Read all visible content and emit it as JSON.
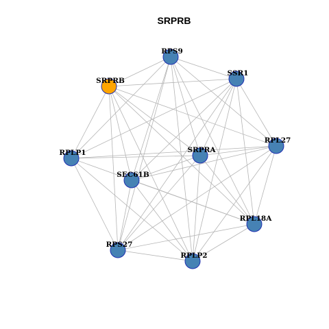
{
  "title": "SRPRB",
  "colors": {
    "node": "#4682b4",
    "highlight": "#ffa500",
    "edge": "#b4b4b4",
    "node_border": "#1f2fb0"
  },
  "nodes": [
    {
      "id": "RPS9",
      "label": "RPS9",
      "highlight": false
    },
    {
      "id": "SRPRB",
      "label": "SRPRB",
      "highlight": true
    },
    {
      "id": "SSR1",
      "label": "SSR1",
      "highlight": false
    },
    {
      "id": "RPL27",
      "label": "RPL27",
      "highlight": false
    },
    {
      "id": "RPLP1",
      "label": "RPLP1",
      "highlight": false
    },
    {
      "id": "SRPRA",
      "label": "SRPRA",
      "highlight": false
    },
    {
      "id": "SEC61B",
      "label": "SEC61B",
      "highlight": false
    },
    {
      "id": "RPL18A",
      "label": "RPL18A",
      "highlight": false
    },
    {
      "id": "RPS27",
      "label": "RPS27",
      "highlight": false
    },
    {
      "id": "RPLP2",
      "label": "RPLP2",
      "highlight": false
    }
  ],
  "edges": [
    [
      "RPS9",
      "SRPRB"
    ],
    [
      "RPS9",
      "SSR1"
    ],
    [
      "RPS9",
      "RPLP1"
    ],
    [
      "RPS9",
      "RPL27"
    ],
    [
      "RPS9",
      "SRPRA"
    ],
    [
      "RPS9",
      "SEC61B"
    ],
    [
      "RPS9",
      "RPL18A"
    ],
    [
      "RPS9",
      "RPS27"
    ],
    [
      "RPS9",
      "RPLP2"
    ],
    [
      "SRPRB",
      "SSR1"
    ],
    [
      "SRPRB",
      "RPLP1"
    ],
    [
      "SRPRB",
      "SRPRA"
    ],
    [
      "SRPRB",
      "RPL27"
    ],
    [
      "SRPRB",
      "SEC61B"
    ],
    [
      "SRPRB",
      "RPL18A"
    ],
    [
      "SRPRB",
      "RPS27"
    ],
    [
      "SRPRB",
      "RPLP2"
    ],
    [
      "SSR1",
      "RPL27"
    ],
    [
      "SSR1",
      "SRPRA"
    ],
    [
      "SSR1",
      "SEC61B"
    ],
    [
      "SSR1",
      "RPL18A"
    ],
    [
      "SSR1",
      "RPS27"
    ],
    [
      "SSR1",
      "RPLP2"
    ],
    [
      "SSR1",
      "RPLP1"
    ],
    [
      "RPL27",
      "RPLP1"
    ],
    [
      "RPL27",
      "SRPRA"
    ],
    [
      "RPL27",
      "SEC61B"
    ],
    [
      "RPL27",
      "RPL18A"
    ],
    [
      "RPL27",
      "RPS27"
    ],
    [
      "RPL27",
      "RPLP2"
    ],
    [
      "RPLP1",
      "SRPRA"
    ],
    [
      "RPLP1",
      "RPL18A"
    ],
    [
      "RPLP1",
      "RPS27"
    ],
    [
      "RPLP1",
      "RPLP2"
    ],
    [
      "SRPRA",
      "SEC61B"
    ],
    [
      "SRPRA",
      "RPS27"
    ],
    [
      "SRPRA",
      "RPLP2"
    ],
    [
      "SRPRA",
      "RPL18A"
    ],
    [
      "SEC61B",
      "RPL18A"
    ],
    [
      "SEC61B",
      "RPS27"
    ],
    [
      "SEC61B",
      "RPLP2"
    ],
    [
      "RPL18A",
      "RPS27"
    ],
    [
      "RPL18A",
      "RPLP2"
    ],
    [
      "RPS27",
      "RPLP2"
    ]
  ]
}
